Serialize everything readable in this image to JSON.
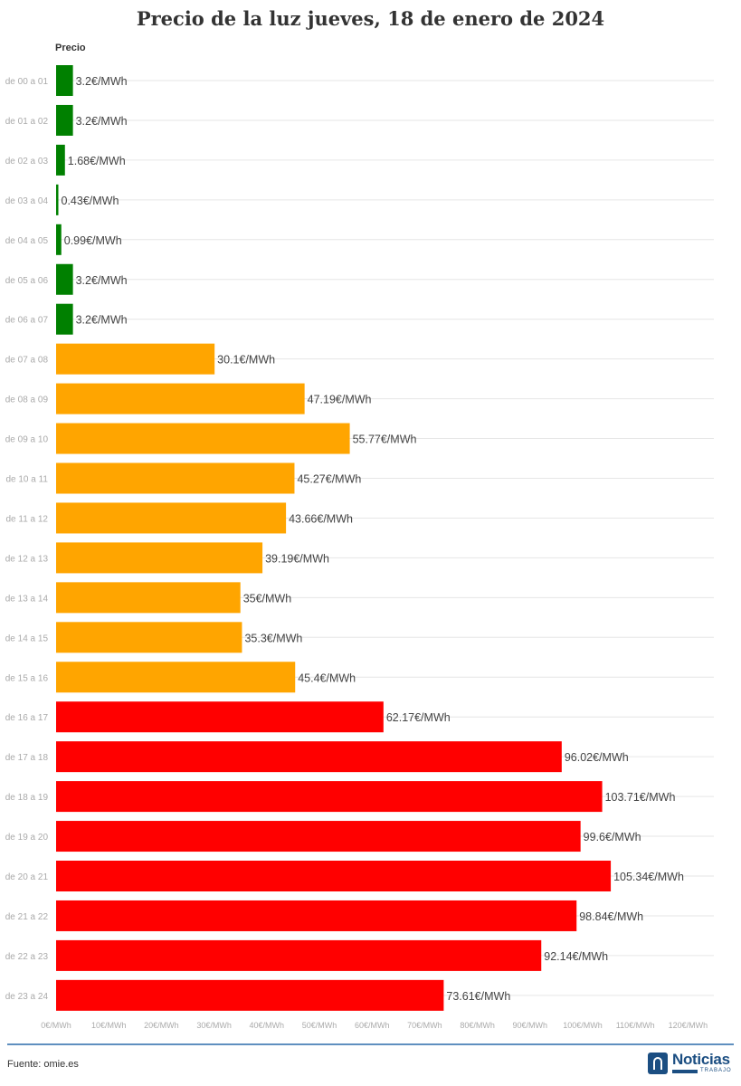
{
  "title": "Precio de la luz jueves, 18 de enero de 2024",
  "series_header": "Precio",
  "source": "Fuente: omie.es",
  "logo": {
    "name": "Noticias",
    "sub": "TRABAJO"
  },
  "colors": {
    "low": "#008000",
    "mid": "#FFA500",
    "high": "#FF0000",
    "grid": "#e6e6e6",
    "axis_text": "#aaaaaa",
    "rule": "#5f8fbf"
  },
  "chart_data": {
    "type": "bar",
    "orientation": "horizontal",
    "categories": [
      "de 00 a 01",
      "de 01 a 02",
      "de 02 a 03",
      "de 03 a 04",
      "de 04 a 05",
      "de 05 a 06",
      "de 06 a 07",
      "de 07 a 08",
      "de 08 a 09",
      "de 09 a 10",
      "de 10 a 11",
      "de 11 a 12",
      "de 12 a 13",
      "de 13 a 14",
      "de 14 a 15",
      "de 15 a 16",
      "de 16 a 17",
      "de 17 a 18",
      "de 18 a 19",
      "de 19 a 20",
      "de 20 a 21",
      "de 21 a 22",
      "de 22 a 23",
      "de 23 a 24"
    ],
    "values": [
      3.2,
      3.2,
      1.68,
      0.43,
      0.99,
      3.2,
      3.2,
      30.1,
      47.19,
      55.77,
      45.27,
      43.66,
      39.19,
      35,
      35.3,
      45.4,
      62.17,
      96.02,
      103.71,
      99.6,
      105.34,
      98.84,
      92.14,
      73.61
    ],
    "data_labels": [
      "3.2€/MWh",
      "3.2€/MWh",
      "1.68€/MWh",
      "0.43€/MWh",
      "0.99€/MWh",
      "3.2€/MWh",
      "3.2€/MWh",
      "30.1€/MWh",
      "47.19€/MWh",
      "55.77€/MWh",
      "45.27€/MWh",
      "43.66€/MWh",
      "39.19€/MWh",
      "35€/MWh",
      "35.3€/MWh",
      "45.4€/MWh",
      "62.17€/MWh",
      "96.02€/MWh",
      "103.71€/MWh",
      "99.6€/MWh",
      "105.34€/MWh",
      "98.84€/MWh",
      "92.14€/MWh",
      "73.61€/MWh"
    ],
    "bar_levels": [
      "low",
      "low",
      "low",
      "low",
      "low",
      "low",
      "low",
      "mid",
      "mid",
      "mid",
      "mid",
      "mid",
      "mid",
      "mid",
      "mid",
      "mid",
      "high",
      "high",
      "high",
      "high",
      "high",
      "high",
      "high",
      "high"
    ],
    "xlim": [
      0,
      125
    ],
    "x_ticks": [
      0,
      10,
      20,
      30,
      40,
      50,
      60,
      70,
      80,
      90,
      100,
      110,
      120
    ],
    "x_tick_labels": [
      "0€/MWh",
      "10€/MWh",
      "20€/MWh",
      "30€/MWh",
      "40€/MWh",
      "50€/MWh",
      "60€/MWh",
      "70€/MWh",
      "80€/MWh",
      "90€/MWh",
      "100€/MWh",
      "110€/MWh",
      "120€/MWh"
    ],
    "grid": true,
    "legend": false
  }
}
